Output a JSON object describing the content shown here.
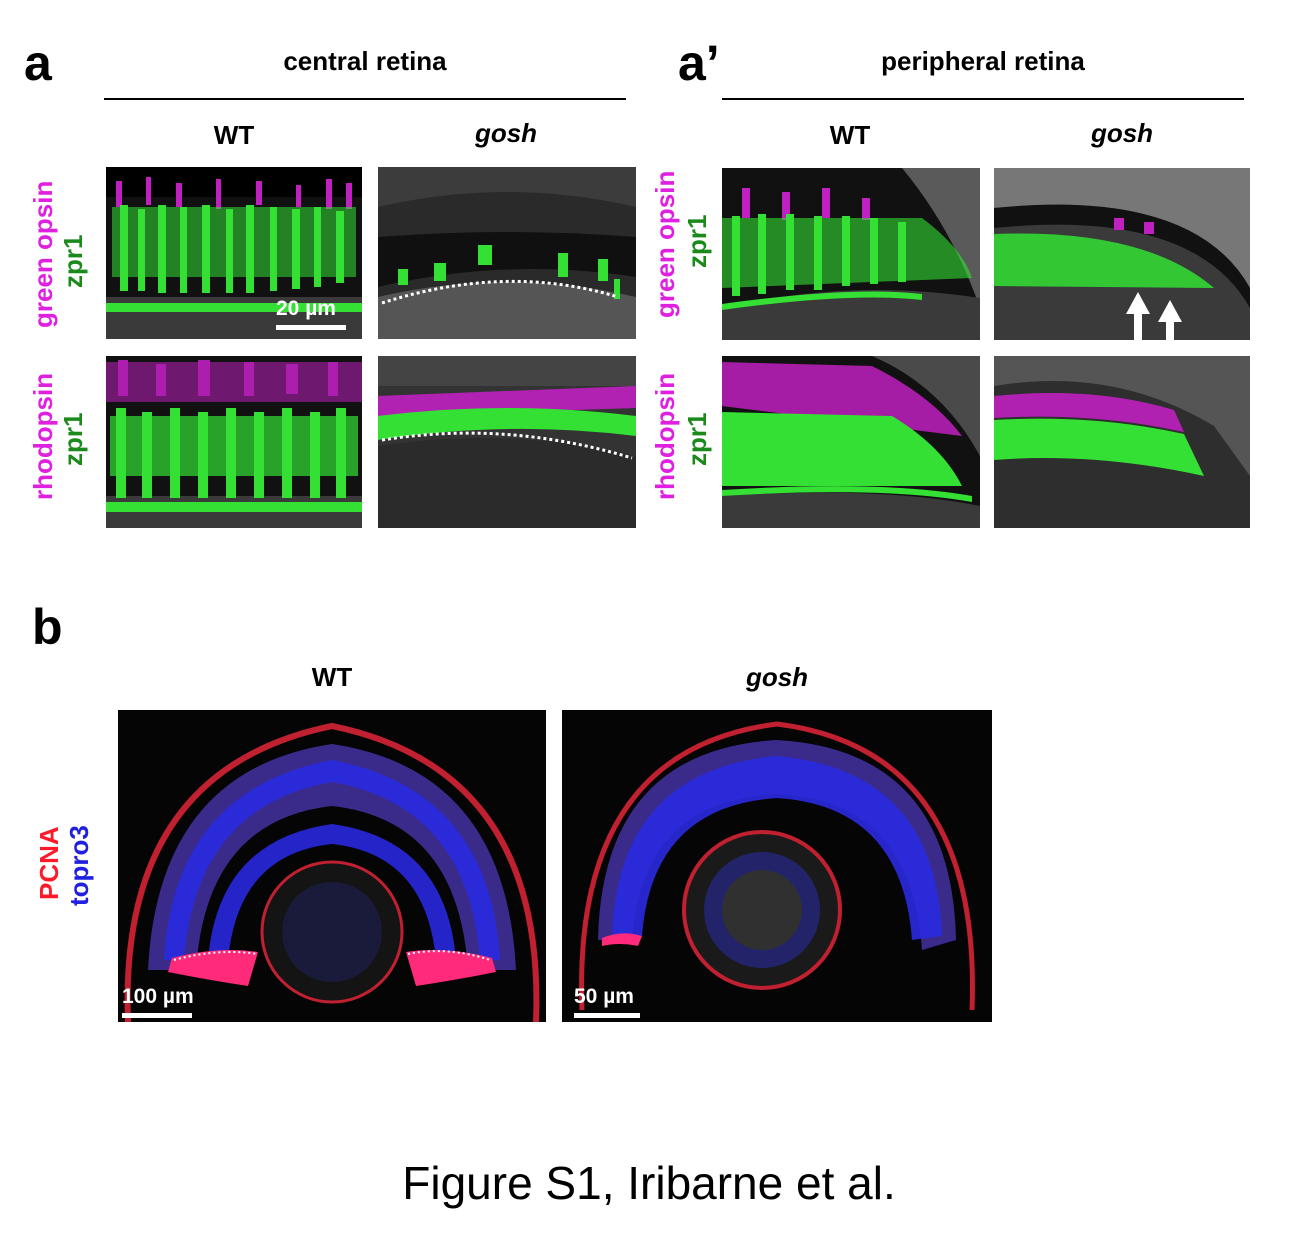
{
  "panel_a": {
    "letter": "a",
    "title": "central retina",
    "col_wt": "WT",
    "col_mut": "gosh",
    "scale": "20 µm"
  },
  "panel_a_prime": {
    "letter": "a’",
    "title": "peripheral retina",
    "col_wt": "WT",
    "col_mut": "gosh"
  },
  "rows": {
    "row1_a": "green opsin",
    "row1_b": "zpr1",
    "row2_a": "rhodopsin",
    "row2_b": "zpr1"
  },
  "panel_b": {
    "letter": "b",
    "col_wt": "WT",
    "col_mut": "gosh",
    "row_a": "PCNA",
    "row_b": "topro3",
    "scale_wt": "100 µm",
    "scale_mut": "50 µm"
  },
  "caption": "Figure S1, Iribarne et al.",
  "colors": {
    "magenta": "#e020e0",
    "green": "#22e022",
    "red": "#ff1a2a",
    "blue": "#2020e0"
  }
}
